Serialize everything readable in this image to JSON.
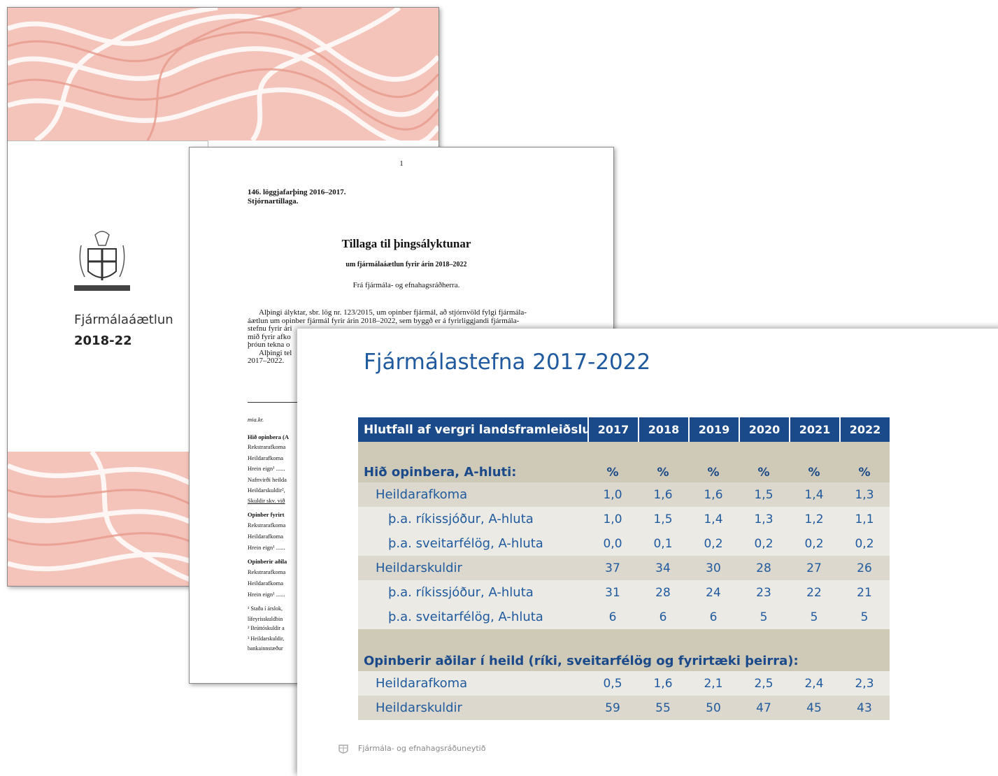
{
  "cover": {
    "title": "Fjármálaáætlun",
    "years": "2018-22"
  },
  "document": {
    "page_number": "1",
    "session": "146. löggjafarþing 2016–2017.",
    "kind": "Stjórnartillaga.",
    "title": "Tillaga til þingsályktunar",
    "subtitle": "um fjármálaáætlun fyrir árin 2018–2022",
    "from": "Frá fjármála- og efnahagsráðherra.",
    "paragraph_lines": [
      "Alþingi ályktar, sbr. lög nr. 123/2015, um opinber fjármál, að stjórnvöld fylgi fjármála-",
      "áætlun um opinber fjármál fyrir árin 2018–2022, sem byggð er á fyrirliggjandi fjármála-",
      "stefnu fyrir ári",
      "mið fyrir afko",
      "þróun tekna o",
      "Alþingi tel",
      "2017–2022."
    ],
    "table_fragments": [
      "mia.kr.",
      "Hið opinbera (A",
      "Rekstrarafkoma",
      "Heildarafkoma",
      "Hrein eign¹ ......",
      "Nafnvirði heilda",
      "Heildarskuldir²,",
      "Skuldir skv. við",
      "Opinber fyrirt",
      "Rekstrarafkoma",
      "Heildarafkoma",
      "Hrein eign¹ ......",
      "Opinberir aðila",
      "Rekstrarafkoma",
      "Heildarafkoma",
      "Hrein eign¹ ......"
    ],
    "footnote_fragments": [
      "¹ Staða í árslok,",
      "lífeyrisskuldbin",
      "² Brúttóskuldir a",
      "³ Heildarskuldir,",
      "bankainnstæður"
    ]
  },
  "slide": {
    "title": "Fjármálastefna 2017-2022",
    "table": {
      "header": [
        "Hlutfall af vergri landsframleiðslu",
        "2017",
        "2018",
        "2019",
        "2020",
        "2021",
        "2022"
      ],
      "sections": [
        {
          "label": "Hið opinbera, A-hluti:",
          "units": [
            "%",
            "%",
            "%",
            "%",
            "%",
            "%"
          ],
          "rows": [
            {
              "label": "Heildarafkoma",
              "values": [
                "1,0",
                "1,6",
                "1,6",
                "1,5",
                "1,4",
                "1,3"
              ],
              "subrows": [
                {
                  "label": "þ.a. ríkissjóður, A-hluta",
                  "values": [
                    "1,0",
                    "1,5",
                    "1,4",
                    "1,3",
                    "1,2",
                    "1,1"
                  ]
                },
                {
                  "label": "þ.a. sveitarfélög, A-hluta",
                  "values": [
                    "0,0",
                    "0,1",
                    "0,2",
                    "0,2",
                    "0,2",
                    "0,2"
                  ]
                }
              ]
            },
            {
              "label": "Heildarskuldir",
              "values": [
                "37",
                "34",
                "30",
                "28",
                "27",
                "26"
              ],
              "subrows": [
                {
                  "label": "þ.a. ríkissjóður, A-hluta",
                  "values": [
                    "31",
                    "28",
                    "24",
                    "23",
                    "22",
                    "21"
                  ]
                },
                {
                  "label": "þ.a. sveitarfélög, A-hluta",
                  "values": [
                    "6",
                    "6",
                    "6",
                    "5",
                    "5",
                    "5"
                  ]
                }
              ]
            }
          ]
        },
        {
          "label": "Opinberir aðilar í heild (ríki, sveitarfélög og fyrirtæki þeirra):",
          "rows": [
            {
              "label": "Heildarafkoma",
              "values": [
                "0,5",
                "1,6",
                "2,1",
                "2,5",
                "2,4",
                "2,3"
              ]
            },
            {
              "label": "Heildarskuldir",
              "values": [
                "59",
                "55",
                "50",
                "47",
                "45",
                "43"
              ]
            }
          ]
        }
      ]
    },
    "footer": "Fjármála- og efnahagsráðuneytið"
  }
}
